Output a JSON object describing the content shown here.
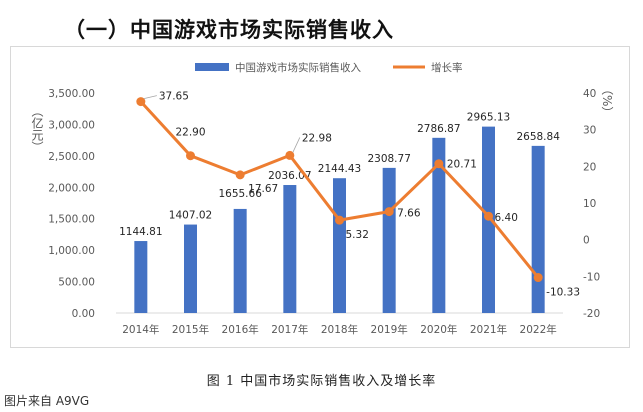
{
  "heading": "（一）中国游戏市场实际销售收入",
  "caption": "图 1 中国市场实际销售收入及增长率",
  "credit": "图片来自 A9VG",
  "colors": {
    "bar": "#4472C4",
    "line": "#ED7D31",
    "axis_text": "#595959",
    "grid": "#d9d9d9"
  },
  "chart_data": {
    "type": "bar+line",
    "categories": [
      "2014年",
      "2015年",
      "2016年",
      "2017年",
      "2018年",
      "2019年",
      "2020年",
      "2021年",
      "2022年"
    ],
    "series": [
      {
        "name": "中国游戏市场实际销售收入",
        "type": "bar",
        "axis": "left",
        "values": [
          1144.81,
          1407.02,
          1655.66,
          2036.07,
          2144.43,
          2308.77,
          2786.87,
          2965.13,
          2658.84
        ],
        "labels": [
          "1144.81",
          "1407.02",
          "1655.66",
          "2036.07",
          "2144.43",
          "2308.77",
          "2786.87",
          "2965.13",
          "2658.84"
        ]
      },
      {
        "name": "增长率",
        "type": "line",
        "axis": "right",
        "values": [
          37.65,
          22.9,
          17.67,
          22.98,
          5.32,
          7.66,
          20.71,
          6.4,
          -10.33
        ],
        "labels": [
          "37.65",
          "22.90",
          "17.67",
          "22.98",
          "5.32",
          "7.66",
          "20.71",
          "6.40",
          "-10.33"
        ]
      }
    ],
    "y_left": {
      "label": "（亿元）",
      "range": [
        0,
        3500
      ],
      "ticks": [
        "0.00",
        "500.00",
        "1,000.00",
        "1,500.00",
        "2,000.00",
        "2,500.00",
        "3,000.00",
        "3,500.00"
      ],
      "tick_values": [
        0,
        500,
        1000,
        1500,
        2000,
        2500,
        3000,
        3500
      ]
    },
    "y_right": {
      "label": "（%）",
      "range": [
        -20,
        40
      ],
      "ticks": [
        "-20",
        "-10",
        "0",
        "10",
        "20",
        "30",
        "40"
      ],
      "tick_values": [
        -20,
        -10,
        0,
        10,
        20,
        30,
        40
      ]
    },
    "legend_position": "top-center",
    "grid": false
  }
}
